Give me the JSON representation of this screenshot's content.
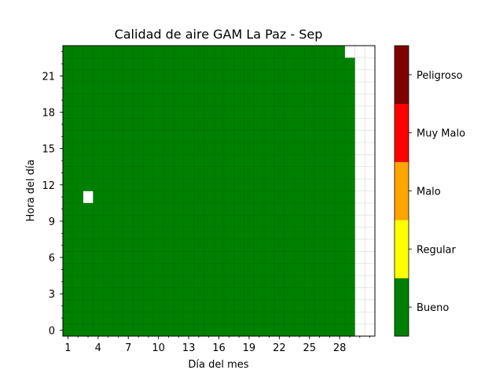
{
  "chart_data": {
    "type": "heatmap",
    "title": "Calidad de aire GAM La Paz - Sep",
    "xlabel": "Día del mes",
    "ylabel": "Hora del día",
    "x_range": [
      1,
      31
    ],
    "y_range": [
      0,
      23
    ],
    "x_ticks": [
      "1",
      "4",
      "7",
      "10",
      "13",
      "16",
      "19",
      "22",
      "25",
      "28"
    ],
    "y_ticks": [
      "0",
      "3",
      "6",
      "9",
      "12",
      "15",
      "18",
      "21"
    ],
    "grid": true,
    "categories": [
      "Bueno",
      "Regular",
      "Malo",
      "Muy Malo",
      "Peligroso"
    ],
    "category_colors": [
      "#008000",
      "#ffff00",
      "#ffa500",
      "#ff0000",
      "#800000"
    ],
    "default_category": "Bueno",
    "days_with_data": [
      1,
      29
    ],
    "missing_cells": [
      {
        "day": 3,
        "hour": 11
      },
      {
        "day": 29,
        "hour": 23
      }
    ]
  }
}
